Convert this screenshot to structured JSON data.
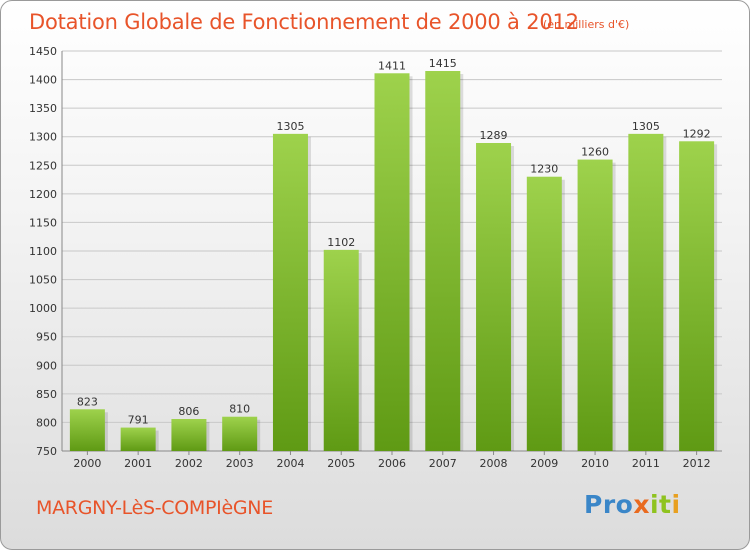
{
  "header": {
    "title": "Dotation Globale de Fonctionnement de 2000 à 2012",
    "subtitle": "(en milliers d'€)"
  },
  "footer": {
    "commune": "MARGNY-LèS-COMPIèGNE",
    "logo": "Proxiti"
  },
  "colors": {
    "accent": "#e8542a",
    "bar_light": "#9ed24c",
    "bar_dark": "#5f9a14"
  },
  "chart_data": {
    "type": "bar",
    "title": "Dotation Globale de Fonctionnement de 2000 à 2012",
    "subtitle": "(en milliers d'€)",
    "categories": [
      "2000",
      "2001",
      "2002",
      "2003",
      "2004",
      "2005",
      "2006",
      "2007",
      "2008",
      "2009",
      "2010",
      "2011",
      "2012"
    ],
    "values": [
      823,
      791,
      806,
      810,
      1305,
      1102,
      1411,
      1415,
      1289,
      1230,
      1260,
      1305,
      1292
    ],
    "yticks": [
      750,
      800,
      850,
      900,
      950,
      1000,
      1050,
      1100,
      1150,
      1200,
      1250,
      1300,
      1350,
      1400,
      1450
    ],
    "ylim": [
      750,
      1450
    ],
    "xlabel": "",
    "ylabel": "",
    "grid": true,
    "data_labels": true
  }
}
